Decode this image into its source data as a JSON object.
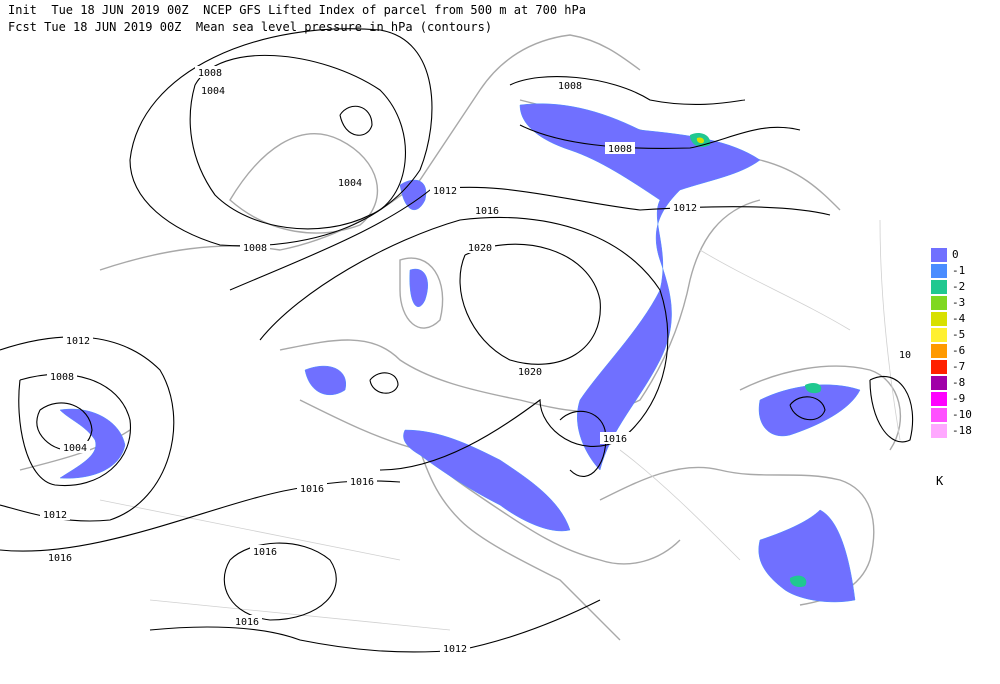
{
  "header": {
    "line1": "Init  Tue 18 JUN 2019 00Z  NCEP GFS Lifted Index of parcel from 500 m at 700 hPa",
    "line2": "Fcst Tue 18 JUN 2019 00Z  Mean sea level pressure in hPa (contours)"
  },
  "contour_labels": [
    "1008",
    "1004",
    "1004",
    "1008",
    "1012",
    "1016",
    "1020",
    "1008",
    "1008",
    "1012",
    "1020",
    "1016",
    "1016",
    "1016",
    "1012",
    "1008",
    "1004",
    "1012",
    "1016",
    "1016",
    "1016",
    "1012",
    "10"
  ],
  "legend": {
    "unit": "K",
    "items": [
      {
        "label": "0",
        "color": "#7070ff"
      },
      {
        "label": "-1",
        "color": "#4a8cff"
      },
      {
        "label": "-2",
        "color": "#20c890"
      },
      {
        "label": "-3",
        "color": "#80d820"
      },
      {
        "label": "-4",
        "color": "#d8e000"
      },
      {
        "label": "-5",
        "color": "#fff030"
      },
      {
        "label": "-6",
        "color": "#ff9a00"
      },
      {
        "label": "-7",
        "color": "#ff2000"
      },
      {
        "label": "-8",
        "color": "#a000a8"
      },
      {
        "label": "-9",
        "color": "#ff00ff"
      },
      {
        "label": "-10",
        "color": "#ff50ff"
      },
      {
        "label": "-18",
        "color": "#ffa8ff"
      }
    ]
  }
}
